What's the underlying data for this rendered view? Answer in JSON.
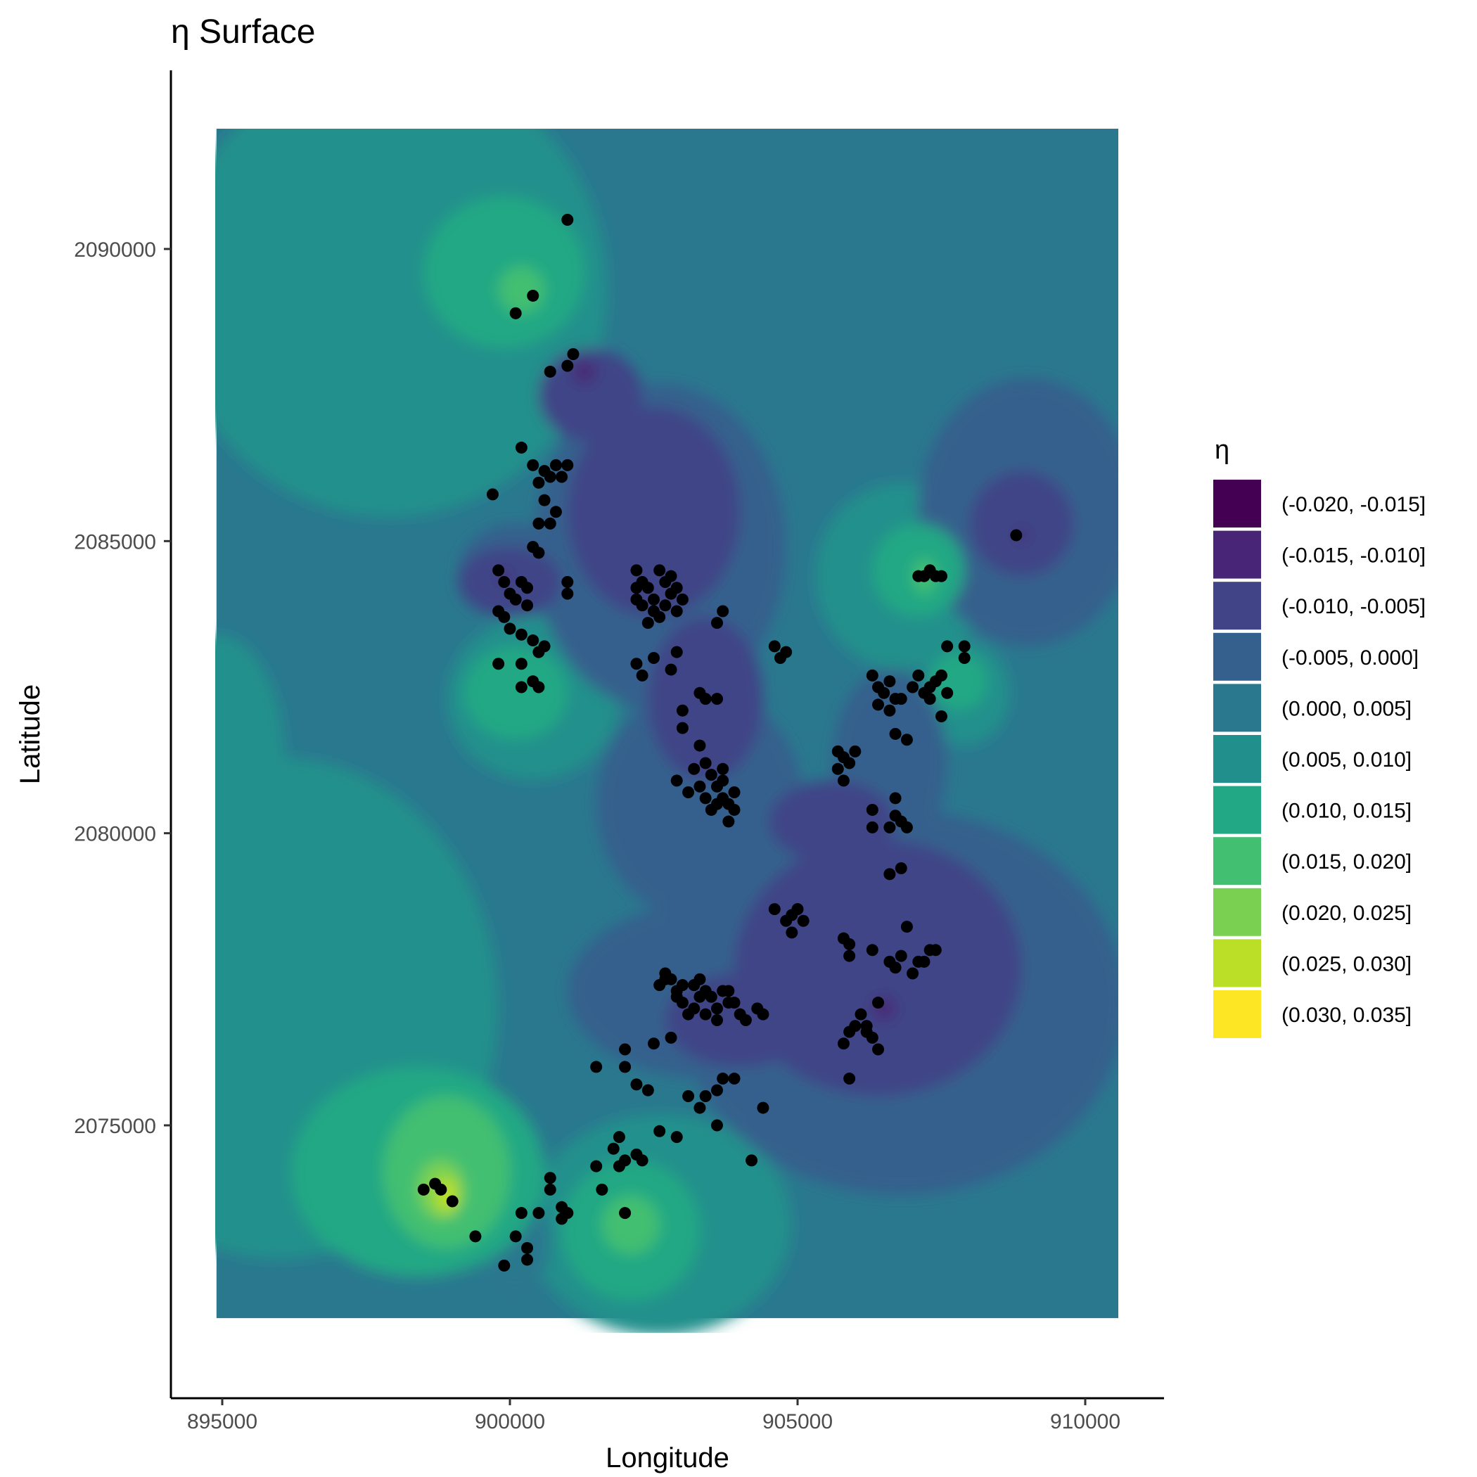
{
  "chart_data": {
    "type": "contour",
    "title": "η Surface",
    "xlabel": "Longitude",
    "ylabel": "Latitude",
    "xlim": [
      894900,
      910700
    ],
    "ylim": [
      2071700,
      2091500
    ],
    "x_ticks": [
      895000,
      900000,
      905000,
      910000
    ],
    "y_ticks": [
      2075000,
      2080000,
      2085000,
      2090000
    ],
    "surface_extent": {
      "x": [
        894900,
        910700
      ],
      "y": [
        2071700,
        2092200
      ]
    },
    "grid": false,
    "legend": {
      "title": "η",
      "position": "right",
      "bins": [
        {
          "label": "(-0.020, -0.015]",
          "color": "#440154"
        },
        {
          "label": "(-0.015, -0.010]",
          "color": "#482576"
        },
        {
          "label": "(-0.010, -0.005]",
          "color": "#414487"
        },
        {
          "label": "(-0.005, 0.000]",
          "color": "#35608D"
        },
        {
          "label": "(0.000, 0.005]",
          "color": "#2A788E"
        },
        {
          "label": "(0.005, 0.010]",
          "color": "#21908C"
        },
        {
          "label": "(0.010, 0.015]",
          "color": "#22A884"
        },
        {
          "label": "(0.015, 0.020]",
          "color": "#43BF71"
        },
        {
          "label": "(0.020, 0.025]",
          "color": "#7AD151"
        },
        {
          "label": "(0.025, 0.030]",
          "color": "#BBDF27"
        },
        {
          "label": "(0.030, 0.035]",
          "color": "#FDE725"
        }
      ]
    },
    "regions": [
      {
        "bin": 5,
        "cx": 897900,
        "cy": 2089300,
        "rx": 3800,
        "ry": 3900
      },
      {
        "bin": 5,
        "cx": 896000,
        "cy": 2077000,
        "rx": 3800,
        "ry": 4300
      },
      {
        "bin": 5,
        "cx": 894900,
        "cy": 2081200,
        "rx": 1200,
        "ry": 2200
      },
      {
        "bin": 5,
        "cx": 902600,
        "cy": 2073300,
        "rx": 2300,
        "ry": 1900
      },
      {
        "bin": 5,
        "cx": 900400,
        "cy": 2082300,
        "rx": 1500,
        "ry": 1400
      },
      {
        "bin": 5,
        "cx": 906800,
        "cy": 2084400,
        "rx": 1500,
        "ry": 1600
      },
      {
        "bin": 5,
        "cx": 907900,
        "cy": 2082400,
        "rx": 800,
        "ry": 900
      },
      {
        "bin": 4,
        "cx": 900100,
        "cy": 2073000,
        "rx": 600,
        "ry": 900
      },
      {
        "bin": 3,
        "cx": 909000,
        "cy": 2085500,
        "rx": 1900,
        "ry": 2300
      },
      {
        "bin": 3,
        "cx": 906800,
        "cy": 2077100,
        "rx": 3900,
        "ry": 3300
      },
      {
        "bin": 3,
        "cx": 902600,
        "cy": 2084900,
        "rx": 2200,
        "ry": 2800
      },
      {
        "bin": 3,
        "cx": 903300,
        "cy": 2080500,
        "rx": 1800,
        "ry": 2000
      },
      {
        "bin": 3,
        "cx": 903400,
        "cy": 2077300,
        "rx": 2400,
        "ry": 1500
      },
      {
        "bin": 3,
        "cx": 906600,
        "cy": 2081200,
        "rx": 1000,
        "ry": 1600
      },
      {
        "bin": 3,
        "cx": 900100,
        "cy": 2084500,
        "rx": 1000,
        "ry": 800
      },
      {
        "bin": 4,
        "cx": 904900,
        "cy": 2078400,
        "rx": 600,
        "ry": 600
      },
      {
        "bin": 6,
        "cx": 899900,
        "cy": 2089600,
        "rx": 1400,
        "ry": 1300
      },
      {
        "bin": 6,
        "cx": 898400,
        "cy": 2074200,
        "rx": 2200,
        "ry": 1800
      },
      {
        "bin": 6,
        "cx": 902100,
        "cy": 2073200,
        "rx": 1200,
        "ry": 1200
      },
      {
        "bin": 6,
        "cx": 900100,
        "cy": 2082400,
        "rx": 900,
        "ry": 800
      },
      {
        "bin": 6,
        "cx": 907100,
        "cy": 2084500,
        "rx": 800,
        "ry": 800
      },
      {
        "bin": 6,
        "cx": 907800,
        "cy": 2082600,
        "rx": 500,
        "ry": 500
      },
      {
        "bin": 2,
        "cx": 902500,
        "cy": 2085500,
        "rx": 1500,
        "ry": 1800
      },
      {
        "bin": 2,
        "cx": 901400,
        "cy": 2087500,
        "rx": 900,
        "ry": 800
      },
      {
        "bin": 2,
        "cx": 903400,
        "cy": 2082300,
        "rx": 1000,
        "ry": 1400
      },
      {
        "bin": 2,
        "cx": 906400,
        "cy": 2077700,
        "rx": 2500,
        "ry": 2200
      },
      {
        "bin": 2,
        "cx": 904000,
        "cy": 2076800,
        "rx": 1300,
        "ry": 800
      },
      {
        "bin": 2,
        "cx": 900000,
        "cy": 2084300,
        "rx": 900,
        "ry": 600
      },
      {
        "bin": 2,
        "cx": 908900,
        "cy": 2085300,
        "rx": 900,
        "ry": 900
      },
      {
        "bin": 2,
        "cx": 905600,
        "cy": 2080200,
        "rx": 1100,
        "ry": 700
      },
      {
        "bin": 7,
        "cx": 900200,
        "cy": 2089300,
        "rx": 400,
        "ry": 400
      },
      {
        "bin": 7,
        "cx": 898900,
        "cy": 2074200,
        "rx": 1100,
        "ry": 1300
      },
      {
        "bin": 7,
        "cx": 902100,
        "cy": 2073300,
        "rx": 500,
        "ry": 500
      },
      {
        "bin": 7,
        "cx": 907200,
        "cy": 2084400,
        "rx": 200,
        "ry": 300
      },
      {
        "bin": 8,
        "cx": 898800,
        "cy": 2073900,
        "rx": 400,
        "ry": 500
      },
      {
        "bin": 1,
        "cx": 901300,
        "cy": 2087900,
        "rx": 200,
        "ry": 200
      },
      {
        "bin": 1,
        "cx": 899900,
        "cy": 2084400,
        "rx": 100,
        "ry": 100
      },
      {
        "bin": 1,
        "cx": 906500,
        "cy": 2077000,
        "rx": 200,
        "ry": 200
      },
      {
        "bin": 1,
        "cx": 908900,
        "cy": 2085100,
        "rx": 100,
        "ry": 100
      },
      {
        "bin": 9,
        "cx": 898900,
        "cy": 2073800,
        "rx": 200,
        "ry": 300
      }
    ],
    "points": [
      [
        901000,
        2090500
      ],
      [
        900400,
        2089200
      ],
      [
        900100,
        2088900
      ],
      [
        901100,
        2088200
      ],
      [
        900700,
        2087900
      ],
      [
        901000,
        2088000
      ],
      [
        900200,
        2086600
      ],
      [
        899700,
        2085800
      ],
      [
        900400,
        2086300
      ],
      [
        900600,
        2086200
      ],
      [
        900700,
        2086100
      ],
      [
        900800,
        2086300
      ],
      [
        901000,
        2086300
      ],
      [
        900900,
        2086100
      ],
      [
        900500,
        2086000
      ],
      [
        900600,
        2085700
      ],
      [
        900800,
        2085500
      ],
      [
        900700,
        2085300
      ],
      [
        900500,
        2085300
      ],
      [
        900400,
        2084900
      ],
      [
        900500,
        2084800
      ],
      [
        899800,
        2084500
      ],
      [
        899900,
        2084300
      ],
      [
        900000,
        2084100
      ],
      [
        900200,
        2084300
      ],
      [
        900300,
        2084200
      ],
      [
        900100,
        2084000
      ],
      [
        900300,
        2083900
      ],
      [
        899900,
        2083700
      ],
      [
        900000,
        2083500
      ],
      [
        900200,
        2083400
      ],
      [
        900400,
        2083300
      ],
      [
        900500,
        2083100
      ],
      [
        900600,
        2083200
      ],
      [
        901000,
        2084300
      ],
      [
        901000,
        2084100
      ],
      [
        899800,
        2083800
      ],
      [
        899800,
        2082900
      ],
      [
        900200,
        2082900
      ],
      [
        900400,
        2082600
      ],
      [
        900200,
        2082500
      ],
      [
        900500,
        2082500
      ],
      [
        902200,
        2084500
      ],
      [
        902300,
        2084300
      ],
      [
        902400,
        2084200
      ],
      [
        902500,
        2084000
      ],
      [
        902600,
        2084500
      ],
      [
        902700,
        2084300
      ],
      [
        902800,
        2084100
      ],
      [
        902500,
        2083800
      ],
      [
        902300,
        2083900
      ],
      [
        902200,
        2084000
      ],
      [
        902600,
        2083700
      ],
      [
        902400,
        2083600
      ],
      [
        902800,
        2084400
      ],
      [
        902900,
        2084200
      ],
      [
        902200,
        2084200
      ],
      [
        902700,
        2083900
      ],
      [
        902900,
        2083800
      ],
      [
        903000,
        2084000
      ],
      [
        903700,
        2083800
      ],
      [
        903600,
        2083600
      ],
      [
        902200,
        2082900
      ],
      [
        902300,
        2082700
      ],
      [
        902500,
        2083000
      ],
      [
        902800,
        2082800
      ],
      [
        902900,
        2083100
      ],
      [
        903300,
        2082400
      ],
      [
        903400,
        2082300
      ],
      [
        903600,
        2082300
      ],
      [
        903000,
        2082100
      ],
      [
        903000,
        2081800
      ],
      [
        903300,
        2081500
      ],
      [
        903400,
        2081200
      ],
      [
        903200,
        2081100
      ],
      [
        903500,
        2081000
      ],
      [
        903700,
        2081100
      ],
      [
        903600,
        2080800
      ],
      [
        903400,
        2080600
      ],
      [
        903600,
        2080500
      ],
      [
        903800,
        2080500
      ],
      [
        903900,
        2080700
      ],
      [
        903700,
        2080900
      ],
      [
        902900,
        2080900
      ],
      [
        903100,
        2080700
      ],
      [
        903800,
        2080200
      ],
      [
        903500,
        2080400
      ],
      [
        903300,
        2080800
      ],
      [
        903700,
        2080600
      ],
      [
        903900,
        2080400
      ],
      [
        904600,
        2083200
      ],
      [
        904800,
        2083100
      ],
      [
        904700,
        2083000
      ],
      [
        906300,
        2082700
      ],
      [
        906400,
        2082500
      ],
      [
        906500,
        2082400
      ],
      [
        906600,
        2082600
      ],
      [
        906700,
        2082300
      ],
      [
        906400,
        2082200
      ],
      [
        906600,
        2082100
      ],
      [
        906800,
        2082300
      ],
      [
        907000,
        2082500
      ],
      [
        907100,
        2082700
      ],
      [
        907200,
        2082400
      ],
      [
        907300,
        2082300
      ],
      [
        907500,
        2082700
      ],
      [
        907600,
        2083200
      ],
      [
        907900,
        2083200
      ],
      [
        907900,
        2083000
      ],
      [
        907400,
        2082600
      ],
      [
        907600,
        2082400
      ],
      [
        907300,
        2082500
      ],
      [
        907500,
        2082000
      ],
      [
        906700,
        2081700
      ],
      [
        906900,
        2081600
      ],
      [
        905700,
        2081400
      ],
      [
        905800,
        2081300
      ],
      [
        905900,
        2081200
      ],
      [
        905700,
        2081100
      ],
      [
        905800,
        2080900
      ],
      [
        906000,
        2081400
      ],
      [
        906700,
        2080600
      ],
      [
        906700,
        2080300
      ],
      [
        906300,
        2080400
      ],
      [
        906300,
        2080100
      ],
      [
        906600,
        2080100
      ],
      [
        906800,
        2080200
      ],
      [
        906900,
        2080100
      ],
      [
        906600,
        2079300
      ],
      [
        906800,
        2079400
      ],
      [
        904600,
        2078700
      ],
      [
        904800,
        2078500
      ],
      [
        904900,
        2078600
      ],
      [
        905000,
        2078700
      ],
      [
        905100,
        2078500
      ],
      [
        904900,
        2078300
      ],
      [
        905800,
        2078200
      ],
      [
        905900,
        2078100
      ],
      [
        905900,
        2077900
      ],
      [
        906300,
        2078000
      ],
      [
        906900,
        2078400
      ],
      [
        906800,
        2077900
      ],
      [
        907100,
        2077800
      ],
      [
        907300,
        2078000
      ],
      [
        906600,
        2077800
      ],
      [
        906700,
        2077700
      ],
      [
        907000,
        2077600
      ],
      [
        907200,
        2077800
      ],
      [
        907400,
        2078000
      ],
      [
        906400,
        2077100
      ],
      [
        902600,
        2077400
      ],
      [
        902700,
        2077500
      ],
      [
        902800,
        2077500
      ],
      [
        902900,
        2077300
      ],
      [
        903000,
        2077100
      ],
      [
        903200,
        2077000
      ],
      [
        903300,
        2077200
      ],
      [
        903400,
        2077300
      ],
      [
        903500,
        2077200
      ],
      [
        903700,
        2077300
      ],
      [
        903800,
        2077100
      ],
      [
        903600,
        2077000
      ],
      [
        903400,
        2076900
      ],
      [
        903100,
        2076900
      ],
      [
        902900,
        2077200
      ],
      [
        903600,
        2076800
      ],
      [
        903900,
        2077100
      ],
      [
        904000,
        2076900
      ],
      [
        904100,
        2076800
      ],
      [
        904400,
        2076900
      ],
      [
        904300,
        2077000
      ],
      [
        903800,
        2077300
      ],
      [
        903000,
        2077400
      ],
      [
        903300,
        2077500
      ],
      [
        902700,
        2077600
      ],
      [
        903200,
        2077400
      ],
      [
        902500,
        2076400
      ],
      [
        902800,
        2076500
      ],
      [
        902000,
        2076300
      ],
      [
        901500,
        2076000
      ],
      [
        902000,
        2076000
      ],
      [
        902200,
        2075700
      ],
      [
        902400,
        2075600
      ],
      [
        903100,
        2075500
      ],
      [
        903300,
        2075300
      ],
      [
        903400,
        2075500
      ],
      [
        903600,
        2075600
      ],
      [
        903700,
        2075800
      ],
      [
        903900,
        2075800
      ],
      [
        904400,
        2075300
      ],
      [
        903600,
        2075000
      ],
      [
        902600,
        2074900
      ],
      [
        902900,
        2074800
      ],
      [
        901900,
        2074800
      ],
      [
        901800,
        2074600
      ],
      [
        902000,
        2074400
      ],
      [
        902200,
        2074500
      ],
      [
        902300,
        2074400
      ],
      [
        901900,
        2074300
      ],
      [
        901500,
        2074300
      ],
      [
        901600,
        2073900
      ],
      [
        900700,
        2074100
      ],
      [
        900700,
        2073900
      ],
      [
        900900,
        2073600
      ],
      [
        901000,
        2073500
      ],
      [
        900200,
        2073500
      ],
      [
        900500,
        2073500
      ],
      [
        900900,
        2073400
      ],
      [
        900300,
        2072900
      ],
      [
        900100,
        2073100
      ],
      [
        899400,
        2073100
      ],
      [
        900300,
        2072700
      ],
      [
        899900,
        2072600
      ],
      [
        902000,
        2073500
      ],
      [
        904200,
        2074400
      ],
      [
        898700,
        2074000
      ],
      [
        898800,
        2073900
      ],
      [
        899000,
        2073700
      ],
      [
        898500,
        2073900
      ],
      [
        906000,
        2076700
      ],
      [
        906200,
        2076700
      ],
      [
        906200,
        2076600
      ],
      [
        906400,
        2076300
      ],
      [
        906300,
        2076500
      ],
      [
        905800,
        2076400
      ],
      [
        905900,
        2076600
      ],
      [
        905900,
        2075800
      ],
      [
        906100,
        2076900
      ],
      [
        907100,
        2084400
      ],
      [
        907200,
        2084400
      ],
      [
        907400,
        2084400
      ],
      [
        907300,
        2084500
      ],
      [
        907500,
        2084400
      ],
      [
        908800,
        2085100
      ]
    ]
  }
}
